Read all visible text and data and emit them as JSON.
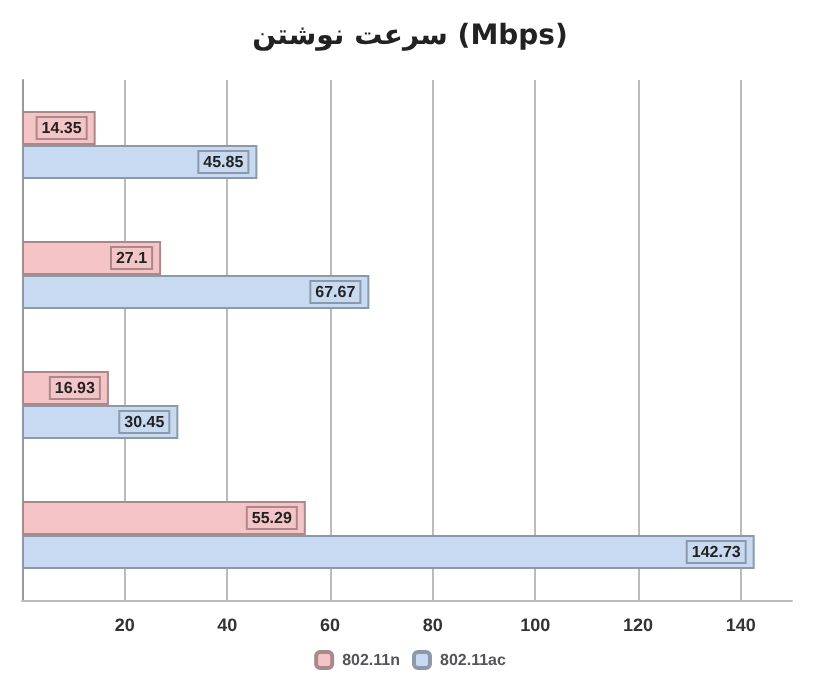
{
  "chart_data": {
    "type": "bar",
    "orientation": "horizontal",
    "title": "سرعت نوشتن (Mbps)",
    "categories": [
      null,
      null,
      null,
      null
    ],
    "series": [
      {
        "name": "802.11n",
        "color": "#f4c4c6",
        "values": [
          14.35,
          27.1,
          16.93,
          55.29
        ]
      },
      {
        "name": "802.11ac",
        "color": "#c8daf2",
        "values": [
          45.85,
          67.67,
          30.45,
          142.73
        ]
      }
    ],
    "xlim": [
      0,
      150
    ],
    "xticks": [
      20,
      40,
      60,
      80,
      100,
      120,
      140
    ],
    "grid": "x",
    "legend": "bottom",
    "data_labels": true
  }
}
